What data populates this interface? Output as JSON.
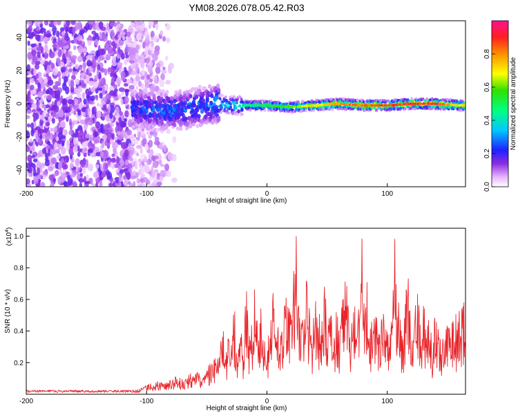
{
  "page_title": "YM08.2026.078.05.42.R03",
  "chart_data": [
    {
      "type": "heatmap",
      "xlabel": "Height of straight line (km)",
      "ylabel": "Frequency (Hz)",
      "xlim": [
        -200,
        165
      ],
      "ylim": [
        -50,
        50
      ],
      "xticks": [
        -200,
        -100,
        0,
        100
      ],
      "yticks": [
        -40,
        -20,
        0,
        20,
        40
      ],
      "xtick_labels": [
        "-200",
        "-100",
        "0",
        "100"
      ],
      "ytick_labels": [
        "-40",
        "-20",
        "0",
        "20",
        "40"
      ],
      "colorbar": {
        "label": "Normalized spectral amplitude",
        "range": [
          0,
          1
        ],
        "ticks": [
          0.0,
          0.2,
          0.4,
          0.6,
          0.8
        ],
        "tick_labels": [
          "0.0",
          "0.2",
          "0.4",
          "0.6",
          "0.8"
        ]
      },
      "signal_ridge": {
        "x": [
          -110,
          -90,
          -70,
          -50,
          -40,
          -30,
          -10,
          0,
          20,
          40,
          60,
          80,
          100,
          120,
          140,
          160
        ],
        "freq": [
          -3,
          -4,
          -4,
          -1,
          0,
          -1,
          -1,
          -1,
          -2,
          -1,
          0,
          -1,
          -1,
          0,
          0,
          -1
        ],
        "peak_amplitude": [
          0.25,
          0.28,
          0.3,
          0.3,
          0.35,
          0.42,
          0.5,
          0.55,
          0.6,
          0.72,
          0.8,
          0.85,
          0.88,
          0.9,
          0.9,
          0.7
        ]
      }
    },
    {
      "type": "line",
      "xlabel": "Height of straight line (km)",
      "ylabel": "SNR (10 * v/v)",
      "scale_label": "(x10",
      "scale_exponent": "4",
      "scale_suffix": ")",
      "xlim": [
        -200,
        165
      ],
      "ylim": [
        0,
        1.05
      ],
      "xticks": [
        -200,
        -100,
        0,
        100
      ],
      "yticks": [
        0.2,
        0.4,
        0.6,
        0.8,
        1.0
      ],
      "xtick_labels": [
        "-200",
        "-100",
        "0",
        "100"
      ],
      "ytick_labels": [
        "0.2",
        "0.4",
        "0.6",
        "0.8",
        "1.0"
      ],
      "series": [
        {
          "name": "SNR",
          "color": "#e8242a",
          "x": [
            -200,
            -190,
            -180,
            -170,
            -160,
            -150,
            -140,
            -130,
            -120,
            -110,
            -105,
            -100,
            -95,
            -90,
            -85,
            -80,
            -75,
            -70,
            -65,
            -60,
            -55,
            -50,
            -45,
            -40,
            -37,
            -35,
            -32,
            -30,
            -27,
            -25,
            -22,
            -20,
            -17,
            -15,
            -12,
            -10,
            -7,
            -5,
            -2,
            0,
            3,
            5,
            8,
            10,
            13,
            15,
            18,
            20,
            22,
            24,
            26,
            28,
            30,
            33,
            35,
            38,
            40,
            43,
            45,
            48,
            50,
            53,
            55,
            58,
            60,
            63,
            65,
            68,
            70,
            73,
            75,
            77,
            79,
            81,
            83,
            85,
            88,
            90,
            93,
            95,
            98,
            100,
            102,
            104,
            106,
            108,
            110,
            113,
            115,
            118,
            120,
            123,
            125,
            128,
            130,
            133,
            135,
            138,
            140,
            143,
            145,
            148,
            150,
            153,
            155,
            158,
            160,
            163,
            165
          ],
          "values": [
            0.02,
            0.02,
            0.02,
            0.02,
            0.02,
            0.02,
            0.02,
            0.02,
            0.02,
            0.02,
            0.03,
            0.05,
            0.06,
            0.07,
            0.06,
            0.08,
            0.09,
            0.08,
            0.1,
            0.12,
            0.1,
            0.14,
            0.18,
            0.2,
            0.45,
            0.15,
            0.3,
            0.22,
            0.48,
            0.2,
            0.35,
            0.25,
            0.58,
            0.3,
            0.4,
            0.6,
            0.3,
            0.45,
            0.28,
            0.25,
            0.38,
            0.55,
            0.35,
            0.42,
            0.3,
            0.5,
            0.48,
            0.45,
            0.6,
            1.02,
            0.5,
            0.55,
            0.4,
            0.6,
            0.45,
            0.35,
            0.55,
            0.45,
            0.3,
            0.6,
            0.35,
            0.45,
            0.25,
            0.5,
            0.3,
            0.55,
            0.7,
            0.4,
            0.35,
            0.6,
            0.3,
            0.55,
            0.8,
            0.45,
            0.6,
            0.35,
            0.4,
            0.5,
            0.35,
            0.55,
            0.4,
            0.35,
            0.3,
            0.45,
            0.85,
            0.4,
            0.5,
            0.3,
            0.55,
            0.6,
            0.3,
            0.45,
            0.55,
            0.3,
            0.5,
            0.35,
            0.4,
            0.25,
            0.45,
            0.35,
            0.3,
            0.45,
            0.4,
            0.3,
            0.55,
            0.35,
            0.45,
            0.5,
            0.4
          ]
        }
      ]
    }
  ]
}
